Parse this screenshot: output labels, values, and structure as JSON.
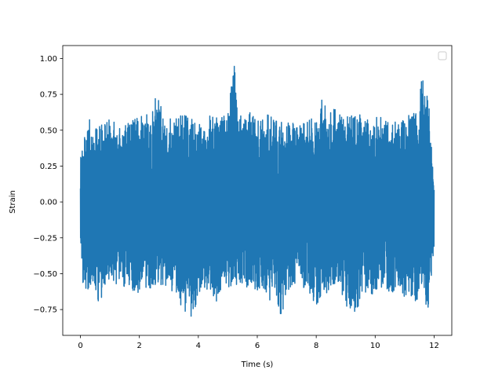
{
  "chart_data": {
    "type": "line",
    "title": "",
    "xlabel": "Time (s)",
    "ylabel": "Strain",
    "xlim": [
      -0.6,
      12.6
    ],
    "ylim": [
      -0.93,
      1.09
    ],
    "xticks": [
      0,
      2,
      4,
      6,
      8,
      10,
      12
    ],
    "xtick_labels": [
      "0",
      "2",
      "4",
      "6",
      "8",
      "10",
      "12"
    ],
    "yticks": [
      -0.75,
      -0.5,
      -0.25,
      0.0,
      0.25,
      0.5,
      0.75,
      1.0
    ],
    "ytick_labels": [
      "−0.75",
      "−0.50",
      "−0.25",
      "0.00",
      "0.25",
      "0.50",
      "0.75",
      "1.00"
    ],
    "grid": false,
    "legend": {
      "placement": "upper right",
      "entries": []
    },
    "series": [
      {
        "color": "#1f77b4",
        "x_range": [
          0,
          12
        ],
        "envelope_upper": [
          [
            0.0,
            0.33
          ],
          [
            0.1,
            0.48
          ],
          [
            0.2,
            0.44
          ],
          [
            0.3,
            0.58
          ],
          [
            0.4,
            0.52
          ],
          [
            0.6,
            0.52
          ],
          [
            0.8,
            0.55
          ],
          [
            1.0,
            0.6
          ],
          [
            1.2,
            0.56
          ],
          [
            1.4,
            0.5
          ],
          [
            1.6,
            0.55
          ],
          [
            1.8,
            0.57
          ],
          [
            2.0,
            0.6
          ],
          [
            2.2,
            0.63
          ],
          [
            2.4,
            0.6
          ],
          [
            2.6,
            0.84
          ],
          [
            2.8,
            0.58
          ],
          [
            3.0,
            0.6
          ],
          [
            3.2,
            0.56
          ],
          [
            3.4,
            0.65
          ],
          [
            3.6,
            0.61
          ],
          [
            3.8,
            0.58
          ],
          [
            4.0,
            0.56
          ],
          [
            4.2,
            0.58
          ],
          [
            4.4,
            0.62
          ],
          [
            4.6,
            0.6
          ],
          [
            4.8,
            0.59
          ],
          [
            5.0,
            0.62
          ],
          [
            5.2,
            1.0
          ],
          [
            5.4,
            0.6
          ],
          [
            5.6,
            0.61
          ],
          [
            5.8,
            0.63
          ],
          [
            6.0,
            0.56
          ],
          [
            6.2,
            0.6
          ],
          [
            6.4,
            0.61
          ],
          [
            6.6,
            0.57
          ],
          [
            6.8,
            0.58
          ],
          [
            7.0,
            0.55
          ],
          [
            7.2,
            0.56
          ],
          [
            7.4,
            0.54
          ],
          [
            7.6,
            0.57
          ],
          [
            7.8,
            0.58
          ],
          [
            8.0,
            0.6
          ],
          [
            8.2,
            0.75
          ],
          [
            8.4,
            0.6
          ],
          [
            8.6,
            0.65
          ],
          [
            8.8,
            0.62
          ],
          [
            9.0,
            0.6
          ],
          [
            9.2,
            0.6
          ],
          [
            9.4,
            0.6
          ],
          [
            9.6,
            0.62
          ],
          [
            9.8,
            0.63
          ],
          [
            10.0,
            0.6
          ],
          [
            10.2,
            0.6
          ],
          [
            10.4,
            0.62
          ],
          [
            10.6,
            0.57
          ],
          [
            10.8,
            0.6
          ],
          [
            11.0,
            0.6
          ],
          [
            11.2,
            0.65
          ],
          [
            11.4,
            0.62
          ],
          [
            11.6,
            0.88
          ],
          [
            11.7,
            0.7
          ],
          [
            11.8,
            0.78
          ],
          [
            11.9,
            0.47
          ],
          [
            12.0,
            0.1
          ]
        ],
        "envelope_lower": [
          [
            0.0,
            -0.25
          ],
          [
            0.1,
            -0.62
          ],
          [
            0.2,
            -0.72
          ],
          [
            0.3,
            -0.6
          ],
          [
            0.4,
            -0.55
          ],
          [
            0.6,
            -0.76
          ],
          [
            0.8,
            -0.6
          ],
          [
            1.0,
            -0.6
          ],
          [
            1.2,
            -0.62
          ],
          [
            1.4,
            -0.58
          ],
          [
            1.6,
            -0.6
          ],
          [
            1.8,
            -0.62
          ],
          [
            2.0,
            -0.64
          ],
          [
            2.2,
            -0.62
          ],
          [
            2.4,
            -0.6
          ],
          [
            2.6,
            -0.6
          ],
          [
            2.8,
            -0.62
          ],
          [
            3.0,
            -0.62
          ],
          [
            3.2,
            -0.64
          ],
          [
            3.4,
            -0.76
          ],
          [
            3.6,
            -0.82
          ],
          [
            3.8,
            -0.8
          ],
          [
            4.0,
            -0.66
          ],
          [
            4.2,
            -0.6
          ],
          [
            4.4,
            -0.62
          ],
          [
            4.6,
            -0.7
          ],
          [
            4.8,
            -0.6
          ],
          [
            5.0,
            -0.62
          ],
          [
            5.2,
            -0.6
          ],
          [
            5.4,
            -0.6
          ],
          [
            5.6,
            -0.6
          ],
          [
            5.8,
            -0.6
          ],
          [
            6.0,
            -0.62
          ],
          [
            6.2,
            -0.6
          ],
          [
            6.4,
            -0.72
          ],
          [
            6.6,
            -0.6
          ],
          [
            6.8,
            -0.82
          ],
          [
            7.0,
            -0.64
          ],
          [
            7.2,
            -0.62
          ],
          [
            7.4,
            -0.6
          ],
          [
            7.6,
            -0.6
          ],
          [
            7.8,
            -0.64
          ],
          [
            8.0,
            -0.82
          ],
          [
            8.2,
            -0.7
          ],
          [
            8.4,
            -0.62
          ],
          [
            8.6,
            -0.6
          ],
          [
            8.8,
            -0.6
          ],
          [
            9.0,
            -0.72
          ],
          [
            9.2,
            -0.84
          ],
          [
            9.4,
            -0.76
          ],
          [
            9.6,
            -0.62
          ],
          [
            9.8,
            -0.65
          ],
          [
            10.0,
            -0.64
          ],
          [
            10.2,
            -0.62
          ],
          [
            10.4,
            -0.62
          ],
          [
            10.6,
            -0.64
          ],
          [
            10.8,
            -0.62
          ],
          [
            11.0,
            -0.72
          ],
          [
            11.2,
            -0.68
          ],
          [
            11.4,
            -0.7
          ],
          [
            11.6,
            -0.6
          ],
          [
            11.7,
            -0.74
          ],
          [
            11.8,
            -0.78
          ],
          [
            11.9,
            -0.55
          ],
          [
            12.0,
            -0.3
          ]
        ]
      }
    ]
  }
}
